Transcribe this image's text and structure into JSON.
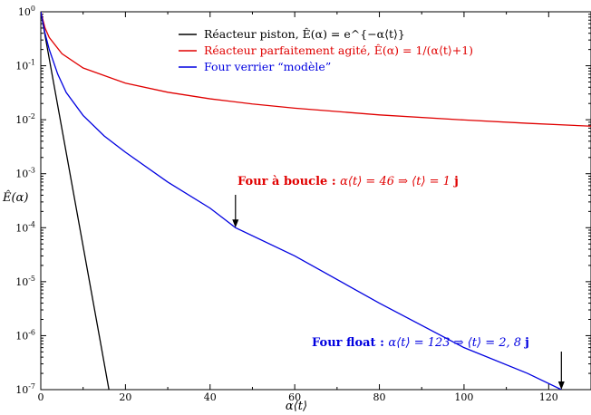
{
  "chart_data": {
    "type": "line",
    "xlabel": "α⟨t⟩",
    "ylabel": "Ê(α)",
    "xlim": [
      0,
      130
    ],
    "ylim": [
      1e-07,
      1
    ],
    "yscale": "log",
    "x_ticks": [
      "0",
      "20",
      "40",
      "60",
      "80",
      "100",
      "120"
    ],
    "y_tick_exponents": [
      "0",
      "-1",
      "-2",
      "-3",
      "-4",
      "-5",
      "-6",
      "-7"
    ],
    "y_tick_base": "10",
    "legend_position": "top-center",
    "series": [
      {
        "name": "Réacteur piston, Ê(α) = e^{−α⟨t⟩}",
        "color": "#000000",
        "x": [
          0,
          2,
          4,
          6,
          8,
          10,
          12,
          14,
          16.1
        ],
        "y": [
          1,
          0.135,
          0.0183,
          0.00248,
          0.000335,
          4.54e-05,
          6.14e-06,
          8.3e-07,
          1e-07
        ]
      },
      {
        "name": "Réacteur parfaitement agité, Ê(α) = 1/(α⟨t⟩+1)",
        "color": "#e00000",
        "x": [
          0,
          1,
          2,
          5,
          10,
          20,
          30,
          40,
          50,
          60,
          80,
          100,
          115,
          130
        ],
        "y": [
          1,
          0.5,
          0.333,
          0.167,
          0.0909,
          0.0476,
          0.0323,
          0.0244,
          0.0196,
          0.0164,
          0.0123,
          0.0099,
          0.0086,
          0.0076
        ]
      },
      {
        "name": "Four verrier “modèle”",
        "color": "#0000e0",
        "x": [
          0,
          1,
          2,
          4,
          6,
          10,
          15,
          20,
          30,
          40,
          46,
          60,
          80,
          100,
          115,
          123
        ],
        "y": [
          1,
          0.4,
          0.2,
          0.07,
          0.032,
          0.012,
          0.005,
          0.0025,
          0.0007,
          0.00023,
          0.0001,
          3e-05,
          4e-06,
          6e-07,
          2e-07,
          1e-07
        ]
      }
    ],
    "annotations": [
      {
        "text_bold": "Four à boucle :",
        "text_math": "α⟨t⟩ = 46 ⇒ ⟨t⟩ = 1",
        "unit": "j",
        "color": "#e00000",
        "arrow_x": 46,
        "arrow_y": 0.0001
      },
      {
        "text_bold": "Four float :",
        "text_math": "α⟨t⟩ = 123 ⇒ ⟨t⟩ = 2, 8",
        "unit": "j",
        "color": "#0000e0",
        "arrow_x": 123,
        "arrow_y": 1e-07
      }
    ]
  }
}
